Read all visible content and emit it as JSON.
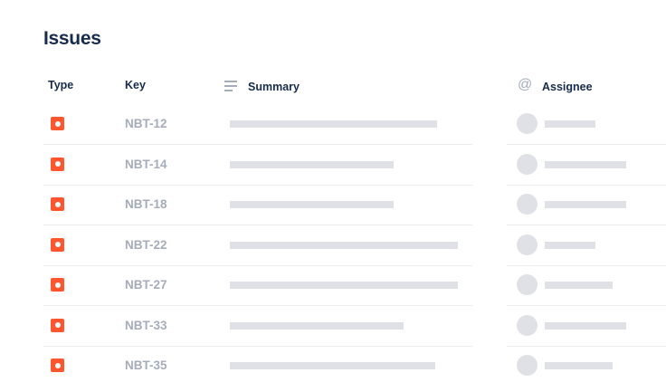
{
  "title": "Issues",
  "columns": {
    "type": "Type",
    "key": "Key",
    "summary": "Summary",
    "assignee": "Assignee"
  },
  "icons": {
    "summary": "lines-icon",
    "assignee": "at-sign-icon",
    "issue_type": "bug-icon"
  },
  "colors": {
    "issue_type": "#ff5630",
    "placeholder": "#dfe1e6"
  },
  "rows": [
    {
      "key": "NBT-12"
    },
    {
      "key": "NBT-14"
    },
    {
      "key": "NBT-18"
    },
    {
      "key": "NBT-22"
    },
    {
      "key": "NBT-27"
    },
    {
      "key": "NBT-33"
    },
    {
      "key": "NBT-35"
    }
  ]
}
